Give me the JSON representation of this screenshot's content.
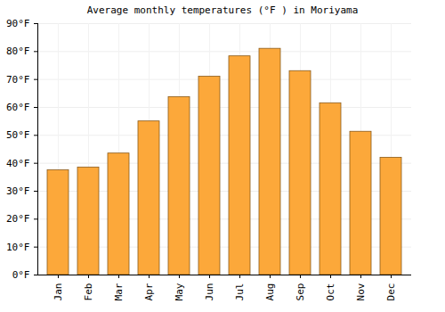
{
  "chart_data": {
    "type": "bar",
    "title": "Average monthly temperatures (°F ) in Moriyama",
    "categories": [
      "Jan",
      "Feb",
      "Mar",
      "Apr",
      "May",
      "Jun",
      "Jul",
      "Aug",
      "Sep",
      "Oct",
      "Nov",
      "Dec"
    ],
    "values": [
      37.5,
      38.5,
      43.5,
      55,
      63.7,
      71,
      78.3,
      81,
      73,
      61.5,
      51.3,
      42
    ],
    "color": "#fca83a",
    "ylim": [
      0,
      90
    ],
    "yticks": [
      {
        "value": 0,
        "label": "0°F"
      },
      {
        "value": 10,
        "label": "10°F"
      },
      {
        "value": 20,
        "label": "20°F"
      },
      {
        "value": 30,
        "label": "30°F"
      },
      {
        "value": 40,
        "label": "40°F"
      },
      {
        "value": 50,
        "label": "50°F"
      },
      {
        "value": 60,
        "label": "60°F"
      },
      {
        "value": 70,
        "label": "70°F"
      },
      {
        "value": 80,
        "label": "80°F"
      },
      {
        "value": 90,
        "label": "90°F"
      }
    ],
    "grid": true
  }
}
